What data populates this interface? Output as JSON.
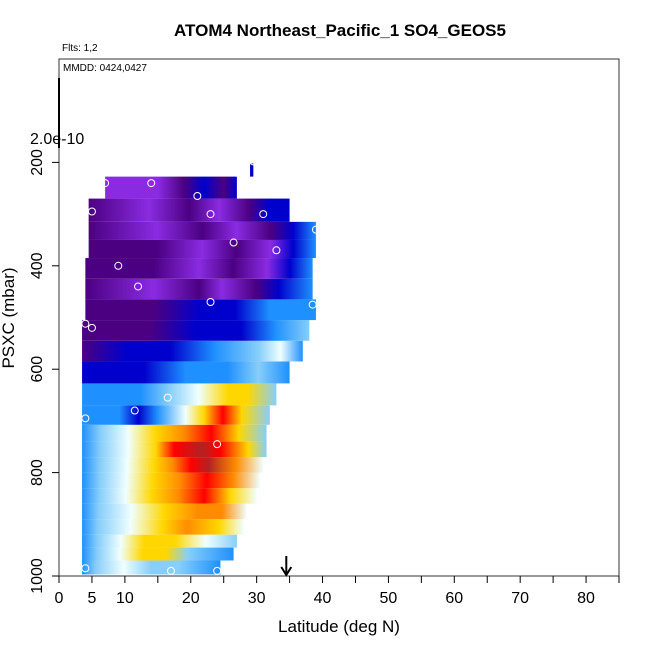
{
  "chart_data": {
    "type": "heatmap",
    "title": "ATOM4 Northeast_Pacific_1 SO4_GEOS5",
    "flights_label": "Flts: 1,2",
    "dates_label": "MMDD: 0424,0427",
    "scale_label": "2.0e-10",
    "xlabel": "Latitude (deg N)",
    "ylabel": "PSXC (mbar)",
    "xlim": [
      0,
      85
    ],
    "ylim": [
      1000,
      0
    ],
    "x_ticks": [
      "0",
      "5",
      "10",
      "20",
      "30",
      "40",
      "50",
      "60",
      "70",
      "80"
    ],
    "x_tick_values": [
      0,
      5,
      10,
      20,
      30,
      40,
      50,
      60,
      70,
      80
    ],
    "x_minor_ticks": [
      15,
      25,
      35,
      45,
      55,
      65,
      75,
      85
    ],
    "y_ticks": [
      "200",
      "400",
      "600",
      "800",
      "1000"
    ],
    "y_tick_values": [
      200,
      400,
      600,
      800,
      1000
    ],
    "arrow_latitude": 34.5,
    "colormap": [
      "#8a2be2",
      "#4b0082",
      "#0000cd",
      "#1e90ff",
      "#87cefa",
      "#f0ffff",
      "#ffd700",
      "#ff8c00",
      "#ff0000",
      "#b22222"
    ],
    "layers": [
      {
        "p": 985,
        "lat_min": 3.5,
        "lat_max": 24.5,
        "stops": [
          [
            0,
            3
          ],
          [
            0.1,
            4
          ],
          [
            0.3,
            5
          ],
          [
            0.5,
            4
          ],
          [
            0.7,
            4
          ],
          [
            1,
            3
          ]
        ]
      },
      {
        "p": 955,
        "lat_min": 3.5,
        "lat_max": 26.5,
        "stops": [
          [
            0,
            3
          ],
          [
            0.1,
            4
          ],
          [
            0.25,
            5
          ],
          [
            0.4,
            6
          ],
          [
            0.55,
            6
          ],
          [
            0.7,
            4
          ],
          [
            1,
            3
          ]
        ]
      },
      {
        "p": 935,
        "lat_min": 3.5,
        "lat_max": 27,
        "stops": [
          [
            0,
            3
          ],
          [
            0.1,
            4
          ],
          [
            0.25,
            5
          ],
          [
            0.4,
            6
          ],
          [
            0.6,
            6
          ],
          [
            0.8,
            5
          ],
          [
            1,
            4
          ]
        ]
      },
      {
        "p": 905,
        "lat_min": 3.5,
        "lat_max": 28,
        "stops": [
          [
            0,
            3
          ],
          [
            0.1,
            4
          ],
          [
            0.3,
            5
          ],
          [
            0.5,
            6
          ],
          [
            0.65,
            7
          ],
          [
            0.85,
            6
          ],
          [
            1,
            5
          ]
        ]
      },
      {
        "p": 875,
        "lat_min": 3.5,
        "lat_max": 28.5,
        "stops": [
          [
            0,
            3
          ],
          [
            0.1,
            4
          ],
          [
            0.3,
            5
          ],
          [
            0.5,
            6
          ],
          [
            0.7,
            7
          ],
          [
            0.85,
            7
          ],
          [
            1,
            5
          ]
        ]
      },
      {
        "p": 845,
        "lat_min": 3.5,
        "lat_max": 30,
        "stops": [
          [
            0,
            3
          ],
          [
            0.1,
            4
          ],
          [
            0.25,
            5
          ],
          [
            0.4,
            6
          ],
          [
            0.55,
            7
          ],
          [
            0.7,
            8
          ],
          [
            0.85,
            6
          ],
          [
            1,
            5
          ]
        ]
      },
      {
        "p": 815,
        "lat_min": 3.5,
        "lat_max": 30.5,
        "stops": [
          [
            0,
            3
          ],
          [
            0.1,
            4
          ],
          [
            0.25,
            5
          ],
          [
            0.4,
            6
          ],
          [
            0.55,
            7
          ],
          [
            0.7,
            8
          ],
          [
            0.85,
            7
          ],
          [
            1,
            5
          ]
        ]
      },
      {
        "p": 785,
        "lat_min": 3.5,
        "lat_max": 31,
        "stops": [
          [
            0,
            3
          ],
          [
            0.1,
            4
          ],
          [
            0.25,
            5
          ],
          [
            0.4,
            6
          ],
          [
            0.5,
            7
          ],
          [
            0.6,
            8
          ],
          [
            0.7,
            9
          ],
          [
            0.85,
            7
          ],
          [
            1,
            5
          ]
        ]
      },
      {
        "p": 755,
        "lat_min": 3.5,
        "lat_max": 31.5,
        "stops": [
          [
            0,
            3
          ],
          [
            0.1,
            4
          ],
          [
            0.25,
            5
          ],
          [
            0.4,
            6
          ],
          [
            0.5,
            8
          ],
          [
            0.65,
            9
          ],
          [
            0.75,
            8
          ],
          [
            0.9,
            6
          ],
          [
            1,
            4
          ]
        ]
      },
      {
        "p": 725,
        "lat_min": 3.5,
        "lat_max": 31.5,
        "stops": [
          [
            0,
            3
          ],
          [
            0.1,
            4
          ],
          [
            0.25,
            5
          ],
          [
            0.4,
            6
          ],
          [
            0.55,
            7
          ],
          [
            0.7,
            8
          ],
          [
            0.85,
            6
          ],
          [
            1,
            4
          ]
        ]
      },
      {
        "p": 690,
        "lat_min": 3.5,
        "lat_max": 32,
        "stops": [
          [
            0,
            3
          ],
          [
            0.2,
            3
          ],
          [
            0.3,
            2
          ],
          [
            0.4,
            3
          ],
          [
            0.55,
            5
          ],
          [
            0.65,
            6
          ],
          [
            0.75,
            8
          ],
          [
            0.85,
            6
          ],
          [
            1,
            4
          ]
        ]
      },
      {
        "p": 650,
        "lat_min": 3.5,
        "lat_max": 33,
        "stops": [
          [
            0,
            3
          ],
          [
            0.3,
            3
          ],
          [
            0.45,
            4
          ],
          [
            0.6,
            5
          ],
          [
            0.75,
            6
          ],
          [
            0.85,
            6
          ],
          [
            1,
            4
          ]
        ]
      },
      {
        "p": 605,
        "lat_min": 3.5,
        "lat_max": 35,
        "stops": [
          [
            0,
            2
          ],
          [
            0.3,
            2
          ],
          [
            0.5,
            3
          ],
          [
            0.7,
            3
          ],
          [
            0.85,
            4
          ],
          [
            1,
            3
          ]
        ]
      },
      {
        "p": 565,
        "lat_min": 3.5,
        "lat_max": 37,
        "stops": [
          [
            0,
            1
          ],
          [
            0.2,
            2
          ],
          [
            0.4,
            2
          ],
          [
            0.6,
            3
          ],
          [
            0.8,
            4
          ],
          [
            0.9,
            5
          ],
          [
            1,
            3
          ]
        ]
      },
      {
        "p": 525,
        "lat_min": 3.5,
        "lat_max": 38,
        "stops": [
          [
            0,
            1
          ],
          [
            0.3,
            1
          ],
          [
            0.5,
            2
          ],
          [
            0.7,
            2
          ],
          [
            0.85,
            3
          ],
          [
            1,
            4
          ]
        ]
      },
      {
        "p": 485,
        "lat_min": 4,
        "lat_max": 39,
        "stops": [
          [
            0,
            1
          ],
          [
            0.3,
            1
          ],
          [
            0.5,
            2
          ],
          [
            0.65,
            2
          ],
          [
            0.8,
            3
          ],
          [
            1,
            3
          ]
        ]
      },
      {
        "p": 445,
        "lat_min": 4,
        "lat_max": 38.5,
        "stops": [
          [
            0,
            1
          ],
          [
            0.3,
            0
          ],
          [
            0.5,
            1
          ],
          [
            0.6,
            0
          ],
          [
            0.75,
            1
          ],
          [
            0.85,
            2
          ],
          [
            1,
            3
          ]
        ]
      },
      {
        "p": 405,
        "lat_min": 4,
        "lat_max": 38.5,
        "stops": [
          [
            0,
            1
          ],
          [
            0.3,
            1
          ],
          [
            0.5,
            0
          ],
          [
            0.65,
            1
          ],
          [
            0.8,
            0
          ],
          [
            0.9,
            2
          ],
          [
            1,
            3
          ]
        ]
      },
      {
        "p": 365,
        "lat_min": 4.5,
        "lat_max": 39,
        "stops": [
          [
            0,
            1
          ],
          [
            0.3,
            1
          ],
          [
            0.5,
            0
          ],
          [
            0.65,
            1
          ],
          [
            0.8,
            0
          ],
          [
            0.9,
            2
          ],
          [
            1,
            3
          ]
        ]
      },
      {
        "p": 335,
        "lat_min": 4.5,
        "lat_max": 39,
        "stops": [
          [
            0,
            1
          ],
          [
            0.3,
            0
          ],
          [
            0.5,
            1
          ],
          [
            0.65,
            0
          ],
          [
            0.8,
            1
          ],
          [
            0.9,
            2
          ],
          [
            1,
            3
          ]
        ]
      },
      {
        "p": 295,
        "lat_min": 4.5,
        "lat_max": 35,
        "stops": [
          [
            0,
            1
          ],
          [
            0.3,
            0
          ],
          [
            0.5,
            1
          ],
          [
            0.65,
            0
          ],
          [
            0.8,
            1
          ],
          [
            0.9,
            2
          ],
          [
            1,
            2
          ]
        ]
      },
      {
        "p": 245,
        "lat_min": 7,
        "lat_max": 27,
        "stops": [
          [
            0,
            0
          ],
          [
            0.4,
            0
          ],
          [
            0.6,
            1
          ],
          [
            0.75,
            2
          ],
          [
            0.9,
            1
          ],
          [
            1,
            2
          ]
        ]
      },
      {
        "p": 210,
        "lat_min": 29,
        "lat_max": 29.5,
        "stops": [
          [
            0,
            2
          ],
          [
            1,
            2
          ]
        ]
      }
    ],
    "points": [
      {
        "x": 7,
        "y": 240
      },
      {
        "x": 14,
        "y": 240
      },
      {
        "x": 21,
        "y": 265
      },
      {
        "x": 27,
        "y": 220
      },
      {
        "x": 29.5,
        "y": 198
      },
      {
        "x": 5,
        "y": 295
      },
      {
        "x": 23,
        "y": 300
      },
      {
        "x": 31,
        "y": 300
      },
      {
        "x": 39,
        "y": 330
      },
      {
        "x": 26.5,
        "y": 355
      },
      {
        "x": 33,
        "y": 370
      },
      {
        "x": 9,
        "y": 400
      },
      {
        "x": 12,
        "y": 440
      },
      {
        "x": 23,
        "y": 470
      },
      {
        "x": 38.5,
        "y": 475
      },
      {
        "x": 4,
        "y": 512
      },
      {
        "x": 5,
        "y": 520
      },
      {
        "x": 4,
        "y": 695
      },
      {
        "x": 11.5,
        "y": 680
      },
      {
        "x": 16.5,
        "y": 655
      },
      {
        "x": 24,
        "y": 745
      },
      {
        "x": 4,
        "y": 985
      },
      {
        "x": 17,
        "y": 990
      },
      {
        "x": 24,
        "y": 990
      }
    ]
  }
}
